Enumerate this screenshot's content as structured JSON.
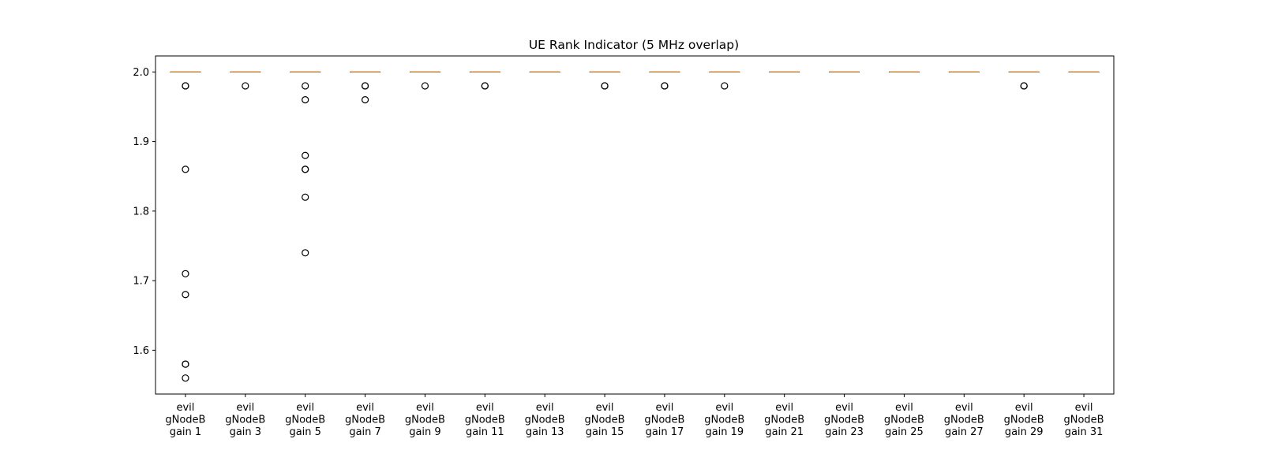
{
  "chart_data": {
    "type": "box",
    "title": "UE Rank Indicator (5 MHz overlap)",
    "xlabel": "",
    "ylabel": "",
    "ylim": [
      1.537,
      2.023
    ],
    "yticks": [
      "1.6",
      "1.7",
      "1.8",
      "1.9",
      "2.0"
    ],
    "grid": false,
    "colors": {
      "median": "#e07e12",
      "box": "#000000",
      "outlier": "#000000"
    },
    "categories": [
      [
        "evil",
        "gNodeB",
        "gain 1"
      ],
      [
        "evil",
        "gNodeB",
        "gain 3"
      ],
      [
        "evil",
        "gNodeB",
        "gain 5"
      ],
      [
        "evil",
        "gNodeB",
        "gain 7"
      ],
      [
        "evil",
        "gNodeB",
        "gain 9"
      ],
      [
        "evil",
        "gNodeB",
        "gain 11"
      ],
      [
        "evil",
        "gNodeB",
        "gain 13"
      ],
      [
        "evil",
        "gNodeB",
        "gain 15"
      ],
      [
        "evil",
        "gNodeB",
        "gain 17"
      ],
      [
        "evil",
        "gNodeB",
        "gain 19"
      ],
      [
        "evil",
        "gNodeB",
        "gain 21"
      ],
      [
        "evil",
        "gNodeB",
        "gain 23"
      ],
      [
        "evil",
        "gNodeB",
        "gain 25"
      ],
      [
        "evil",
        "gNodeB",
        "gain 27"
      ],
      [
        "evil",
        "gNodeB",
        "gain 29"
      ],
      [
        "evil",
        "gNodeB",
        "gain 31"
      ]
    ],
    "boxes": [
      {
        "median": 2.0,
        "q1": 2.0,
        "q3": 2.0,
        "whisker_low": 2.0,
        "whisker_high": 2.0,
        "outliers": [
          1.98,
          1.98,
          1.86,
          1.71,
          1.68,
          1.58,
          1.58,
          1.56
        ]
      },
      {
        "median": 2.0,
        "q1": 2.0,
        "q3": 2.0,
        "whisker_low": 2.0,
        "whisker_high": 2.0,
        "outliers": [
          1.98
        ]
      },
      {
        "median": 2.0,
        "q1": 2.0,
        "q3": 2.0,
        "whisker_low": 2.0,
        "whisker_high": 2.0,
        "outliers": [
          1.98,
          1.96,
          1.88,
          1.86,
          1.86,
          1.82,
          1.74
        ]
      },
      {
        "median": 2.0,
        "q1": 2.0,
        "q3": 2.0,
        "whisker_low": 2.0,
        "whisker_high": 2.0,
        "outliers": [
          1.98,
          1.98,
          1.96
        ]
      },
      {
        "median": 2.0,
        "q1": 2.0,
        "q3": 2.0,
        "whisker_low": 2.0,
        "whisker_high": 2.0,
        "outliers": [
          1.98
        ]
      },
      {
        "median": 2.0,
        "q1": 2.0,
        "q3": 2.0,
        "whisker_low": 2.0,
        "whisker_high": 2.0,
        "outliers": [
          1.98,
          1.98
        ]
      },
      {
        "median": 2.0,
        "q1": 2.0,
        "q3": 2.0,
        "whisker_low": 2.0,
        "whisker_high": 2.0,
        "outliers": []
      },
      {
        "median": 2.0,
        "q1": 2.0,
        "q3": 2.0,
        "whisker_low": 2.0,
        "whisker_high": 2.0,
        "outliers": [
          1.98,
          1.98
        ]
      },
      {
        "median": 2.0,
        "q1": 2.0,
        "q3": 2.0,
        "whisker_low": 2.0,
        "whisker_high": 2.0,
        "outliers": [
          1.98,
          1.98
        ]
      },
      {
        "median": 2.0,
        "q1": 2.0,
        "q3": 2.0,
        "whisker_low": 2.0,
        "whisker_high": 2.0,
        "outliers": [
          1.98
        ]
      },
      {
        "median": 2.0,
        "q1": 2.0,
        "q3": 2.0,
        "whisker_low": 2.0,
        "whisker_high": 2.0,
        "outliers": []
      },
      {
        "median": 2.0,
        "q1": 2.0,
        "q3": 2.0,
        "whisker_low": 2.0,
        "whisker_high": 2.0,
        "outliers": []
      },
      {
        "median": 2.0,
        "q1": 2.0,
        "q3": 2.0,
        "whisker_low": 2.0,
        "whisker_high": 2.0,
        "outliers": []
      },
      {
        "median": 2.0,
        "q1": 2.0,
        "q3": 2.0,
        "whisker_low": 2.0,
        "whisker_high": 2.0,
        "outliers": []
      },
      {
        "median": 2.0,
        "q1": 2.0,
        "q3": 2.0,
        "whisker_low": 2.0,
        "whisker_high": 2.0,
        "outliers": [
          1.98,
          1.98
        ]
      },
      {
        "median": 2.0,
        "q1": 2.0,
        "q3": 2.0,
        "whisker_low": 2.0,
        "whisker_high": 2.0,
        "outliers": []
      }
    ]
  }
}
